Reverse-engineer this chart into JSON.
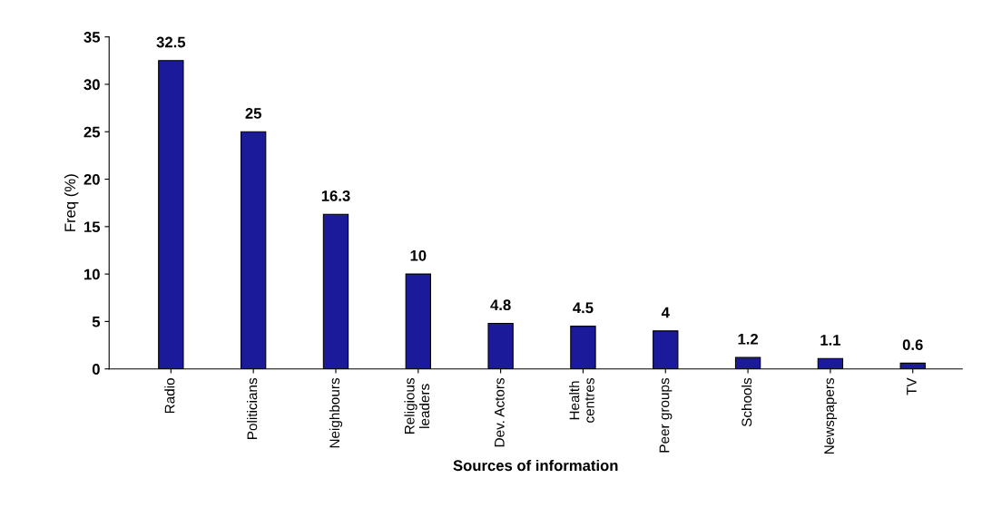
{
  "chart_data": {
    "type": "bar",
    "xlabel": "Sources of information",
    "ylabel": "Freq (%)",
    "categories": [
      "Radio",
      "Politicians",
      "Neighbours",
      "Religious\nleaders",
      "Dev. Actors",
      "Health\ncentres",
      "Peer groups",
      "Schools",
      "Newspapers",
      "TV"
    ],
    "values": [
      32.5,
      25,
      16.3,
      10,
      4.8,
      4.5,
      4,
      1.2,
      1.1,
      0.6
    ],
    "color": "#1a1a9a",
    "ylim": [
      0,
      35
    ],
    "yticks": [
      0,
      5,
      10,
      15,
      20,
      25,
      30,
      35
    ],
    "grid": false,
    "data_labels": true
  }
}
